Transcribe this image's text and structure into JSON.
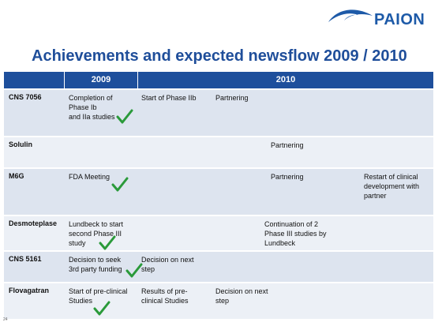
{
  "brand": {
    "name": "PAION",
    "icon": "paion-logo-icon"
  },
  "title": "Achievements and expected newsflow 2009 / 2010",
  "header": {
    "col_2009": "2009",
    "col_2010": "2010"
  },
  "rows": [
    {
      "label": "CNS 7056",
      "c2009": [
        "Completion of",
        "Phase Ib",
        "and IIa studies"
      ],
      "c2010a": [
        "Start of Phase IIb"
      ],
      "c2010b": [
        "Partnering"
      ],
      "c2010c": [],
      "c2010d": []
    },
    {
      "label": "Solulin",
      "c2009": [],
      "c2010a": [],
      "c2010b": [],
      "c2010c": [
        "Partnering"
      ],
      "c2010d": []
    },
    {
      "label": "M6G",
      "c2009": [
        "FDA Meeting"
      ],
      "c2010a": [],
      "c2010b": [],
      "c2010c": [
        "Partnering"
      ],
      "c2010d": [
        "Restart of clinical",
        "development with",
        "partner"
      ]
    },
    {
      "label": "Desmoteplase",
      "c2009": [
        "Lundbeck to start",
        "second Phase III",
        "study"
      ],
      "c2010a": [],
      "c2010b": [],
      "c2010c": [
        "Continuation of 2",
        "Phase III studies by",
        "Lundbeck"
      ],
      "c2010d": []
    },
    {
      "label": "CNS 5161",
      "c2009": [
        "Decision to seek",
        "3rd party funding"
      ],
      "c2010a": [
        "Decision on next",
        "step"
      ],
      "c2010b": [],
      "c2010c": [],
      "c2010d": []
    },
    {
      "label": "Flovagatran",
      "c2009": [
        "Start of pre-clinical",
        "Studies"
      ],
      "c2010a": [
        "Results of pre-",
        "clinical Studies"
      ],
      "c2010b": [
        "Decision on next",
        "step"
      ],
      "c2010c": [],
      "c2010d": []
    }
  ],
  "check_icon": "check-icon",
  "check_color": "#2a9a3a",
  "colors": {
    "header_bg": "#1e4f9c",
    "title": "#1f4e9a",
    "row_a": "#dde4ef",
    "row_b": "#ecf0f6"
  }
}
